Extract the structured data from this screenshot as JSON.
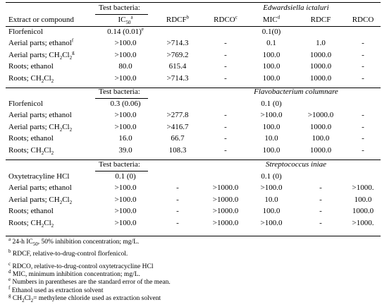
{
  "table": {
    "column_header": {
      "label": "Extract or compound",
      "columns": [
        [
          "IC",
          {
            "sub": "50"
          },
          {
            "sup": "a"
          }
        ],
        [
          "RDCF",
          {
            "sup": "b"
          }
        ],
        [
          "RDCO",
          {
            "sup": "c"
          }
        ],
        [
          "MIC",
          {
            "sup": "d"
          }
        ],
        "RDCF",
        "RDCO"
      ]
    },
    "sections": [
      {
        "test_bacteria_label": "Test bacteria:",
        "species": "Edwardsiella ictaluri",
        "rows": [
          {
            "label": "Florfenicol",
            "cells": [
              [
                "0.14 (0.01)",
                {
                  "sup": "e"
                }
              ],
              null,
              null,
              "0.1(0)",
              null,
              null
            ]
          },
          {
            "label": [
              "Aerial parts; ethanol",
              {
                "sup": "f"
              }
            ],
            "cells": [
              ">100.0",
              ">714.3",
              "-",
              "0.1",
              "1.0",
              "-"
            ]
          },
          {
            "label": [
              "Aerial parts; CH",
              {
                "sub": "2"
              },
              "Cl",
              {
                "sub": "2"
              },
              {
                "sup": "g"
              }
            ],
            "cells": [
              ">100.0",
              ">769.2",
              "-",
              "100.0",
              "1000.0",
              "-"
            ]
          },
          {
            "label": "Roots; ethanol",
            "cells": [
              "80.0",
              "615.4",
              "-",
              "100.0",
              "1000.0",
              "-"
            ]
          },
          {
            "label": [
              "Roots; CH",
              {
                "sub": "2"
              },
              "Cl",
              {
                "sub": "2"
              }
            ],
            "cells": [
              ">100.0",
              ">714.3",
              "-",
              "100.0",
              "1000.0",
              "-"
            ]
          }
        ]
      },
      {
        "test_bacteria_label": "Test bacteria:",
        "species": "Flavobacterium columnare",
        "rows": [
          {
            "label": "Florfenicol",
            "cells": [
              "0.3 (0.06)",
              null,
              null,
              "0.1 (0)",
              null,
              null
            ]
          },
          {
            "label": "Aerial parts; ethanol",
            "cells": [
              ">100.0",
              ">277.8",
              "-",
              ">100.0",
              ">1000.0",
              "-"
            ]
          },
          {
            "label": [
              "Aerial parts; CH",
              {
                "sub": "2"
              },
              "Cl",
              {
                "sub": "2"
              }
            ],
            "cells": [
              ">100.0",
              ">416.7",
              "-",
              "100.0",
              "1000.0",
              "-"
            ]
          },
          {
            "label": "Roots; ethanol",
            "cells": [
              "16.0",
              "66.7",
              "-",
              "10.0",
              "100.0",
              "-"
            ]
          },
          {
            "label": [
              "Roots; CH",
              {
                "sub": "2"
              },
              "Cl",
              {
                "sub": "2"
              }
            ],
            "cells": [
              "39.0",
              "108.3",
              "-",
              "100.0",
              "1000.0",
              "-"
            ]
          }
        ]
      },
      {
        "test_bacteria_label": "Test bacteria:",
        "species": "Streptococcus iniae",
        "rows": [
          {
            "label": "Oxytetracyline HCl",
            "cells": [
              "0.1 (0)",
              null,
              null,
              "0.1 (0)",
              null,
              null
            ]
          },
          {
            "label": "Aerial parts; ethanol",
            "cells": [
              ">100.0",
              "-",
              ">1000.0",
              ">100.0",
              "-",
              ">1000."
            ]
          },
          {
            "label": [
              "Aerial parts; CH",
              {
                "sub": "2"
              },
              "Cl",
              {
                "sub": "2"
              }
            ],
            "cells": [
              ">100.0",
              "-",
              ">1000.0",
              "10.0",
              "-",
              "100.0"
            ]
          },
          {
            "label": "Roots; ethanol",
            "cells": [
              ">100.0",
              "-",
              ">1000.0",
              "100.0",
              "-",
              "1000.0"
            ]
          },
          {
            "label": [
              "Roots; CH",
              {
                "sub": "2"
              },
              "Cl",
              {
                "sub": "2"
              }
            ],
            "cells": [
              ">100.0",
              "-",
              ">1000.0",
              ">100.0",
              "-",
              ">1000."
            ]
          }
        ]
      }
    ]
  },
  "footnotes": [
    [
      {
        "sup": "a"
      },
      " 24-h IC",
      {
        "sub": "50"
      },
      ", 50% inhibition concentration; mg/L."
    ],
    [
      {
        "sup": "b"
      },
      " RDCF, relative-to-drug-control florfenicol."
    ],
    [
      {
        "sup": "c"
      },
      " RDCO, relative-to-drug-control oxytetracycline HCl"
    ],
    [
      {
        "sup": "d"
      },
      " MIC, minimum inhibition concentration; mg/L."
    ],
    [
      {
        "sup": "e"
      },
      " Numbers in parentheses are the standard error of the mean."
    ],
    [
      {
        "sup": "f"
      },
      " Ethanol used as extraction solvent"
    ],
    [
      {
        "sup": "g"
      },
      " CH",
      {
        "sub": "2"
      },
      "Cl",
      {
        "sub": "2"
      },
      "= methylene chloride used as extraction solvent"
    ]
  ]
}
